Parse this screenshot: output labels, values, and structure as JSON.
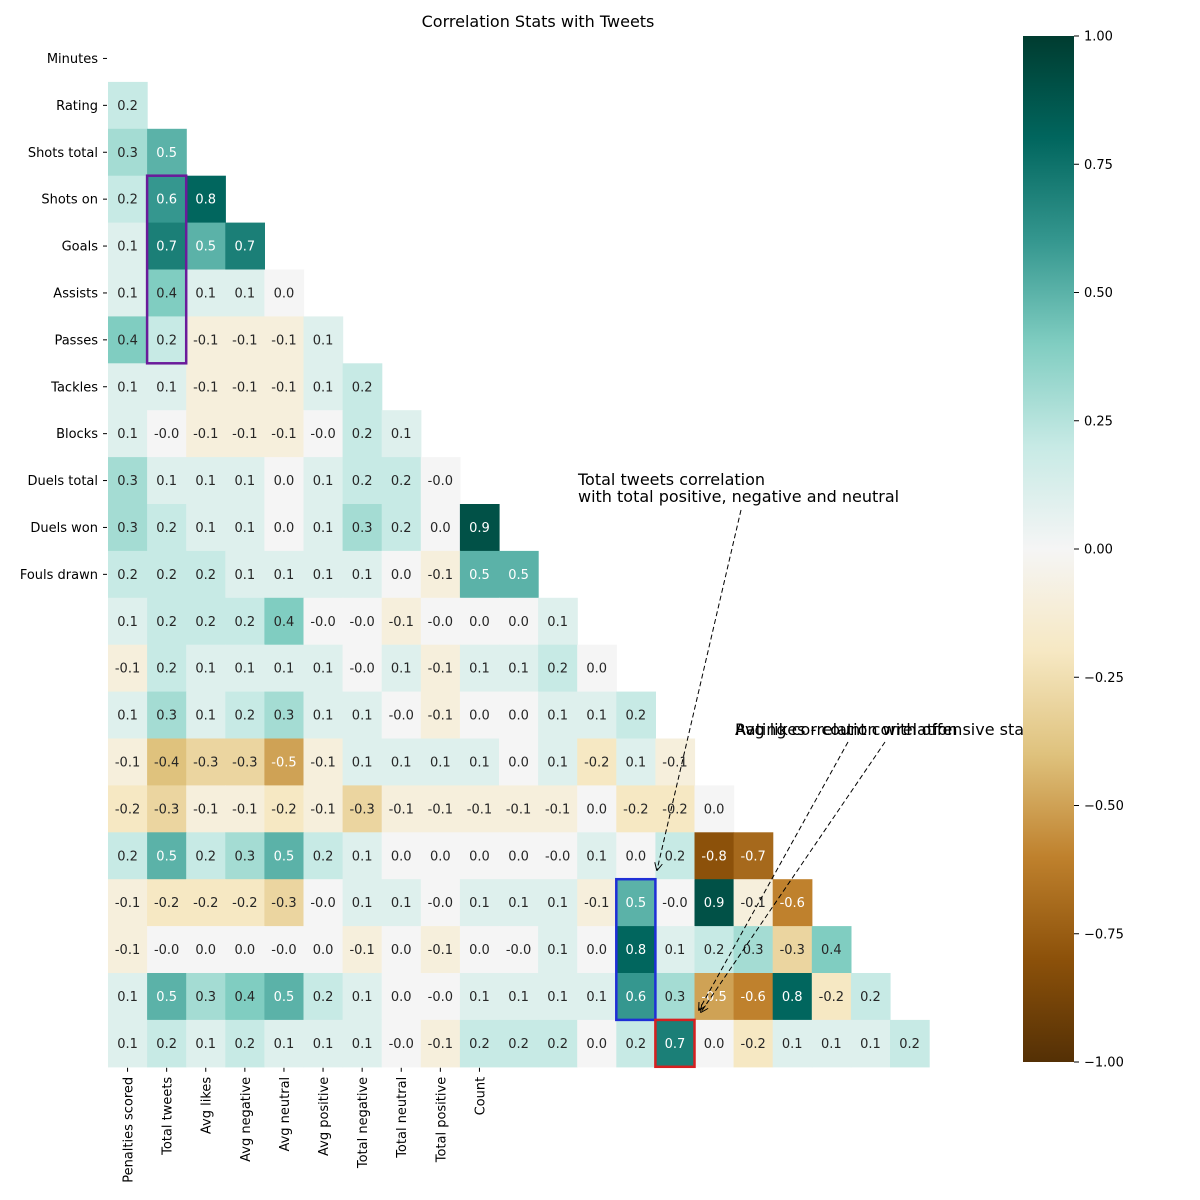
{
  "chart_data": {
    "type": "heatmap",
    "title": "Correlation Stats with Tweets",
    "row_labels": [
      "Minutes",
      "Rating",
      "Shots total",
      "Shots on",
      "Goals",
      "Assists",
      "Passes",
      "Tackles",
      "Blocks",
      "Duels total",
      "Duels won",
      "Fouls drawn",
      "",
      "",
      "",
      "",
      "",
      "",
      "",
      "",
      "",
      ""
    ],
    "col_labels": [
      "Penalties scored",
      "Total tweets",
      "Avg likes",
      "Avg negative",
      "Avg neutral",
      "Avg positive",
      "Total negative",
      "Total neutral",
      "Total positive",
      "Count",
      "",
      "",
      "",
      "",
      "",
      "",
      "",
      "",
      "",
      "",
      "",
      ""
    ],
    "values": [
      [],
      [
        "0.2"
      ],
      [
        "0.3",
        "0.5"
      ],
      [
        "0.2",
        "0.6",
        "0.8"
      ],
      [
        "0.1",
        "0.7",
        "0.5",
        "0.7"
      ],
      [
        "0.1",
        "0.4",
        "0.1",
        "0.1",
        "0.0"
      ],
      [
        "0.4",
        "0.2",
        "-0.1",
        "-0.1",
        "-0.1",
        "0.1"
      ],
      [
        "0.1",
        "0.1",
        "-0.1",
        "-0.1",
        "-0.1",
        "0.1",
        "0.2"
      ],
      [
        "0.1",
        "-0.0",
        "-0.1",
        "-0.1",
        "-0.1",
        "-0.0",
        "0.2",
        "0.1"
      ],
      [
        "0.3",
        "0.1",
        "0.1",
        "0.1",
        "0.0",
        "0.1",
        "0.2",
        "0.2",
        "-0.0"
      ],
      [
        "0.3",
        "0.2",
        "0.1",
        "0.1",
        "0.0",
        "0.1",
        "0.3",
        "0.2",
        "0.0",
        "0.9"
      ],
      [
        "0.2",
        "0.2",
        "0.2",
        "0.1",
        "0.1",
        "0.1",
        "0.1",
        "0.0",
        "-0.1",
        "0.5",
        "0.5"
      ],
      [
        "0.1",
        "0.2",
        "0.2",
        "0.2",
        "0.4",
        "-0.0",
        "-0.0",
        "-0.1",
        "-0.0",
        "0.0",
        "0.0",
        "0.1"
      ],
      [
        "-0.1",
        "0.2",
        "0.1",
        "0.1",
        "0.1",
        "0.1",
        "-0.0",
        "0.1",
        "-0.1",
        "0.1",
        "0.1",
        "0.2",
        "0.0"
      ],
      [
        "0.1",
        "0.3",
        "0.1",
        "0.2",
        "0.3",
        "0.1",
        "0.1",
        "-0.0",
        "-0.1",
        "0.0",
        "0.0",
        "0.1",
        "0.1",
        "0.2"
      ],
      [
        "-0.1",
        "-0.4",
        "-0.3",
        "-0.3",
        "-0.5",
        "-0.1",
        "0.1",
        "0.1",
        "0.1",
        "0.1",
        "0.0",
        "0.1",
        "-0.2",
        "0.1",
        "-0.1"
      ],
      [
        "-0.2",
        "-0.3",
        "-0.1",
        "-0.1",
        "-0.2",
        "-0.1",
        "-0.3",
        "-0.1",
        "-0.1",
        "-0.1",
        "-0.1",
        "-0.1",
        "0.0",
        "-0.2",
        "-0.2",
        "0.0"
      ],
      [
        "0.2",
        "0.5",
        "0.2",
        "0.3",
        "0.5",
        "0.2",
        "0.1",
        "0.0",
        "0.0",
        "0.0",
        "0.0",
        "-0.0",
        "0.1",
        "0.0",
        "0.2",
        "-0.8",
        "-0.7"
      ],
      [
        "-0.1",
        "-0.2",
        "-0.2",
        "-0.2",
        "-0.3",
        "-0.0",
        "0.1",
        "0.1",
        "-0.0",
        "0.1",
        "0.1",
        "0.1",
        "-0.1",
        "0.5",
        "-0.0",
        "0.9",
        "-0.1",
        "-0.6"
      ],
      [
        "-0.1",
        "-0.0",
        "0.0",
        "0.0",
        "-0.0",
        "0.0",
        "-0.1",
        "0.0",
        "-0.1",
        "0.0",
        "-0.0",
        "0.1",
        "0.0",
        "0.8",
        "0.1",
        "0.2",
        "0.3",
        "-0.3",
        "0.4"
      ],
      [
        "0.1",
        "0.5",
        "0.3",
        "0.4",
        "0.5",
        "0.2",
        "0.1",
        "0.0",
        "-0.0",
        "0.1",
        "0.1",
        "0.1",
        "0.1",
        "0.6",
        "0.3",
        "-0.5",
        "-0.6",
        "0.8",
        "-0.2",
        "0.2"
      ],
      [
        "0.1",
        "0.2",
        "0.1",
        "0.2",
        "0.1",
        "0.1",
        "0.1",
        "-0.0",
        "-0.1",
        "0.2",
        "0.2",
        "0.2",
        "0.0",
        "0.2",
        "0.7",
        "0.0",
        "-0.2",
        "0.1",
        "0.1",
        "0.1",
        "0.2"
      ]
    ],
    "vmin": -1,
    "vmax": 1,
    "colormap": "BrBG",
    "colorbar_ticks": [
      "1.00",
      "0.75",
      "0.50",
      "0.25",
      "0.00",
      "−0.25",
      "−0.50",
      "−0.75",
      "−1.00"
    ],
    "highlights": [
      {
        "color": "#6a1b9a",
        "col_start": 1,
        "col_end": 1,
        "row_start": 3,
        "row_end": 6
      },
      {
        "color": "#1f2fd6",
        "col_start": 13,
        "col_end": 13,
        "row_start": 18,
        "row_end": 20
      },
      {
        "color": "#d62020",
        "col_start": 14,
        "col_end": 14,
        "row_start": 21,
        "row_end": 21
      }
    ],
    "annotations": [
      {
        "text": "Total tweets correlation\nwith total positive, negative and neutral"
      },
      {
        "text": "Avg likes - count correlation"
      },
      {
        "text": "Rating correlation with offensive stats"
      }
    ]
  }
}
